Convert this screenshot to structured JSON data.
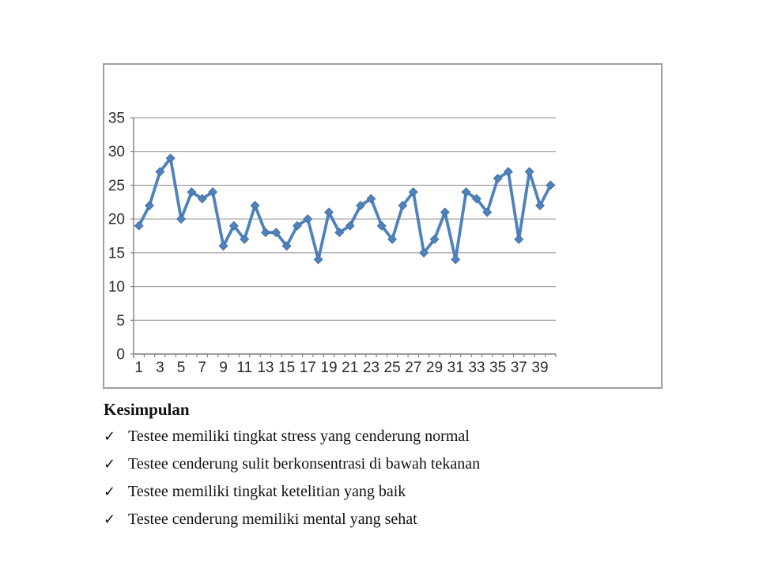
{
  "chart_style": {
    "line_color": "#4F81BD",
    "marker_edge_color": "#3E6B9E",
    "grid_color": "#8f8f8f",
    "axis_color": "#7f7f7f",
    "tick_color": "#7f7f7f",
    "label_color": "#2b2b2b",
    "frame_border_color": "#a0a0a0"
  },
  "chart_data": {
    "type": "line",
    "title": "",
    "xlabel": "",
    "ylabel": "",
    "legend": "none",
    "grid": "horizontal",
    "marker": "diamond",
    "x": [
      1,
      2,
      3,
      4,
      5,
      6,
      7,
      8,
      9,
      10,
      11,
      12,
      13,
      14,
      15,
      16,
      17,
      18,
      19,
      20,
      21,
      22,
      23,
      24,
      25,
      26,
      27,
      28,
      29,
      30,
      31,
      32,
      33,
      34,
      35,
      36,
      37,
      38,
      39,
      40
    ],
    "values": [
      19,
      22,
      27,
      29,
      20,
      24,
      23,
      24,
      16,
      19,
      17,
      22,
      18,
      18,
      16,
      19,
      20,
      14,
      21,
      18,
      19,
      22,
      23,
      19,
      17,
      22,
      24,
      15,
      17,
      21,
      14,
      24,
      23,
      21,
      26,
      27,
      17,
      27,
      22,
      25
    ],
    "x_tick_labels": [
      "1",
      "3",
      "5",
      "7",
      "9",
      "11",
      "13",
      "15",
      "17",
      "19",
      "21",
      "23",
      "25",
      "27",
      "29",
      "31",
      "33",
      "35",
      "37",
      "39"
    ],
    "y_ticks": [
      0,
      5,
      10,
      15,
      20,
      25,
      30,
      35
    ],
    "ylim": [
      0,
      35
    ]
  },
  "conclusion": {
    "heading": "Kesimpulan",
    "bullet_icon": "✓",
    "items": [
      "Testee memiliki tingkat stress yang cenderung normal",
      "Testee cenderung sulit berkonsentrasi di bawah tekanan",
      "Testee memiliki tingkat ketelitian yang baik",
      "Testee cenderung memiliki mental yang sehat"
    ]
  }
}
